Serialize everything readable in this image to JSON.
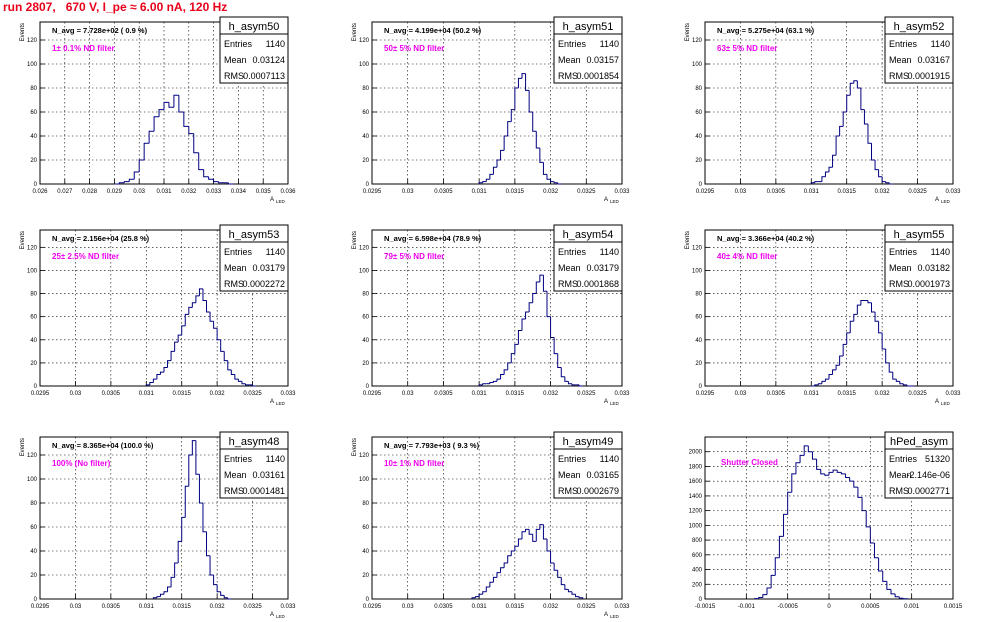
{
  "page": {
    "title": "run 2807,   670 V, I_pe ≈ 6.00 nA, 120 Hz"
  },
  "style": {
    "title_color": "#e8001a",
    "histogram_color": "#000080",
    "annotation_color": "#ee00ee",
    "grid_color": "#000000",
    "frame_color": "#000000",
    "background": "#ffffff"
  },
  "chart_data": [
    {
      "type": "bar",
      "histogram": "h_asym50",
      "stats": {
        "entries": "1140",
        "mean": "0.03124",
        "rms": "0.0007113"
      },
      "navg_text": "N_avg = 7.728e+02 ( 0.9 %)",
      "annotation": "1± 0.1% ND filter",
      "xlabel": "A",
      "xlabel_sub": "LED",
      "ylabel": "Events",
      "xlim": [
        0.026,
        0.036
      ],
      "ylim": [
        0,
        135
      ],
      "xticks": [
        "0.026",
        "0.027",
        "0.028",
        "0.029",
        "0.03",
        "0.031",
        "0.032",
        "0.033",
        "0.034",
        "0.035",
        "0.036"
      ],
      "yticks": [
        0,
        20,
        40,
        60,
        80,
        100,
        120
      ],
      "grid": true,
      "x": [
        0.029,
        0.0292,
        0.0294,
        0.0296,
        0.0298,
        0.03,
        0.0302,
        0.0304,
        0.0306,
        0.0308,
        0.031,
        0.0312,
        0.0314,
        0.0316,
        0.0318,
        0.032,
        0.0322,
        0.0324,
        0.0326,
        0.0328,
        0.033,
        0.0332,
        0.0334,
        0.0336
      ],
      "values": [
        0,
        1,
        2,
        4,
        10,
        20,
        34,
        44,
        56,
        62,
        68,
        64,
        74,
        60,
        48,
        42,
        26,
        12,
        6,
        4,
        2,
        1,
        1,
        0
      ]
    },
    {
      "type": "bar",
      "histogram": "h_asym51",
      "stats": {
        "entries": "1140",
        "mean": "0.03157",
        "rms": "0.0001854"
      },
      "navg_text": "N_avg = 4.199e+04 (50.2 %)",
      "annotation": "50± 5% ND filter",
      "xlabel": "A",
      "xlabel_sub": "LED",
      "ylabel": "Events",
      "xlim": [
        0.0295,
        0.033
      ],
      "ylim": [
        0,
        135
      ],
      "xticks": [
        "0.0295",
        "0.03",
        "0.0305",
        "0.031",
        "0.0315",
        "0.032",
        "0.0325",
        "0.033"
      ],
      "yticks": [
        0,
        20,
        40,
        60,
        80,
        100,
        120
      ],
      "grid": true,
      "x": [
        0.031,
        0.03105,
        0.0311,
        0.03115,
        0.0312,
        0.03125,
        0.0313,
        0.03135,
        0.0314,
        0.03145,
        0.0315,
        0.03155,
        0.0316,
        0.03165,
        0.0317,
        0.03175,
        0.0318,
        0.03185,
        0.0319,
        0.03195,
        0.032,
        0.03205,
        0.0321
      ],
      "values": [
        1,
        2,
        4,
        8,
        14,
        20,
        28,
        40,
        52,
        62,
        80,
        88,
        92,
        78,
        60,
        44,
        30,
        18,
        8,
        4,
        2,
        1,
        0
      ]
    },
    {
      "type": "bar",
      "histogram": "h_asym52",
      "stats": {
        "entries": "1140",
        "mean": "0.03167",
        "rms": "0.0001915"
      },
      "navg_text": "N_avg = 5.275e+04 (63.1 %)",
      "annotation": "63± 5% ND filter",
      "xlabel": "A",
      "xlabel_sub": "LED",
      "ylabel": "Events",
      "xlim": [
        0.0295,
        0.033
      ],
      "ylim": [
        0,
        135
      ],
      "xticks": [
        "0.0295",
        "0.03",
        "0.0305",
        "0.031",
        "0.0315",
        "0.032",
        "0.0325",
        "0.033"
      ],
      "yticks": [
        0,
        20,
        40,
        60,
        80,
        100,
        120
      ],
      "grid": true,
      "x": [
        0.031,
        0.03105,
        0.0311,
        0.03115,
        0.0312,
        0.03125,
        0.0313,
        0.03135,
        0.0314,
        0.03145,
        0.0315,
        0.03155,
        0.0316,
        0.03165,
        0.0317,
        0.03175,
        0.0318,
        0.03185,
        0.0319,
        0.03195,
        0.032,
        0.03205,
        0.0321
      ],
      "values": [
        1,
        2,
        2,
        6,
        10,
        14,
        24,
        40,
        48,
        60,
        74,
        84,
        86,
        80,
        62,
        50,
        34,
        20,
        12,
        6,
        2,
        1,
        0
      ]
    },
    {
      "type": "bar",
      "histogram": "h_asym53",
      "stats": {
        "entries": "1140",
        "mean": "0.03179",
        "rms": "0.0002272"
      },
      "navg_text": "N_avg = 2.156e+04 (25.8 %)",
      "annotation": "25± 2.5% ND filter",
      "xlabel": "A",
      "xlabel_sub": "LED",
      "ylabel": "Events",
      "xlim": [
        0.0295,
        0.033
      ],
      "ylim": [
        0,
        135
      ],
      "xticks": [
        "0.0295",
        "0.03",
        "0.0305",
        "0.031",
        "0.0315",
        "0.032",
        "0.0325",
        "0.033"
      ],
      "yticks": [
        0,
        20,
        40,
        60,
        80,
        100,
        120
      ],
      "grid": true,
      "x": [
        0.031,
        0.03105,
        0.0311,
        0.03115,
        0.0312,
        0.03125,
        0.0313,
        0.03135,
        0.0314,
        0.03145,
        0.0315,
        0.03155,
        0.0316,
        0.03165,
        0.0317,
        0.03175,
        0.0318,
        0.03185,
        0.0319,
        0.03195,
        0.032,
        0.03205,
        0.0321,
        0.03215,
        0.0322,
        0.03225,
        0.0323,
        0.03235,
        0.0324,
        0.03245,
        0.0325
      ],
      "values": [
        1,
        3,
        6,
        10,
        12,
        16,
        22,
        30,
        38,
        44,
        52,
        62,
        68,
        72,
        78,
        84,
        74,
        64,
        56,
        50,
        40,
        30,
        22,
        14,
        10,
        6,
        4,
        2,
        1,
        1,
        0
      ]
    },
    {
      "type": "bar",
      "histogram": "h_asym54",
      "stats": {
        "entries": "1140",
        "mean": "0.03179",
        "rms": "0.0001868"
      },
      "navg_text": "N_avg = 6.598e+04 (78.9 %)",
      "annotation": "79± 5% ND filter",
      "xlabel": "A",
      "xlabel_sub": "LED",
      "ylabel": "Events",
      "xlim": [
        0.0295,
        0.033
      ],
      "ylim": [
        0,
        135
      ],
      "xticks": [
        "0.0295",
        "0.03",
        "0.0305",
        "0.031",
        "0.0315",
        "0.032",
        "0.0325",
        "0.033"
      ],
      "yticks": [
        0,
        20,
        40,
        60,
        80,
        100,
        120
      ],
      "grid": true,
      "x": [
        0.031,
        0.03105,
        0.0311,
        0.03115,
        0.0312,
        0.03125,
        0.0313,
        0.03135,
        0.0314,
        0.03145,
        0.0315,
        0.03155,
        0.0316,
        0.03165,
        0.0317,
        0.03175,
        0.0318,
        0.03185,
        0.0319,
        0.03195,
        0.032,
        0.03205,
        0.0321,
        0.03215,
        0.0322,
        0.03225,
        0.0323,
        0.03235,
        0.0324
      ],
      "values": [
        1,
        2,
        2,
        3,
        4,
        6,
        10,
        14,
        20,
        28,
        36,
        48,
        58,
        64,
        72,
        80,
        90,
        96,
        82,
        60,
        42,
        28,
        16,
        8,
        4,
        2,
        1,
        1,
        0
      ]
    },
    {
      "type": "bar",
      "histogram": "h_asym55",
      "stats": {
        "entries": "1140",
        "mean": "0.03182",
        "rms": "0.0001973"
      },
      "navg_text": "N_avg = 3.366e+04 (40.2 %)",
      "annotation": "40± 4% ND filter",
      "xlabel": "A",
      "xlabel_sub": "LED",
      "ylabel": "Events",
      "xlim": [
        0.0295,
        0.033
      ],
      "ylim": [
        0,
        135
      ],
      "xticks": [
        "0.0295",
        "0.03",
        "0.0305",
        "0.031",
        "0.0315",
        "0.032",
        "0.0325",
        "0.033"
      ],
      "yticks": [
        0,
        20,
        40,
        60,
        80,
        100,
        120
      ],
      "grid": true,
      "x": [
        0.031,
        0.03105,
        0.0311,
        0.03115,
        0.0312,
        0.03125,
        0.0313,
        0.03135,
        0.0314,
        0.03145,
        0.0315,
        0.03155,
        0.0316,
        0.03165,
        0.0317,
        0.03175,
        0.0318,
        0.03185,
        0.0319,
        0.03195,
        0.032,
        0.03205,
        0.0321,
        0.03215,
        0.0322,
        0.03225,
        0.0323,
        0.03235,
        0.0324
      ],
      "values": [
        0,
        1,
        2,
        4,
        6,
        10,
        14,
        18,
        26,
        36,
        46,
        56,
        62,
        70,
        74,
        74,
        72,
        64,
        56,
        46,
        32,
        20,
        12,
        6,
        4,
        2,
        1,
        0,
        0
      ]
    },
    {
      "type": "bar",
      "histogram": "h_asym48",
      "stats": {
        "entries": "1140",
        "mean": "0.03161",
        "rms": "0.0001481"
      },
      "navg_text": "N_avg = 8.365e+04 (100.0 %)",
      "annotation": "100% (No filter)",
      "xlabel": "A",
      "xlabel_sub": "LED",
      "ylabel": "Events",
      "xlim": [
        0.0295,
        0.033
      ],
      "ylim": [
        0,
        135
      ],
      "xticks": [
        "0.0295",
        "0.03",
        "0.0305",
        "0.031",
        "0.0315",
        "0.032",
        "0.0325",
        "0.033"
      ],
      "yticks": [
        0,
        20,
        40,
        60,
        80,
        100,
        120
      ],
      "grid": true,
      "x": [
        0.0311,
        0.03115,
        0.0312,
        0.03125,
        0.0313,
        0.03135,
        0.0314,
        0.03145,
        0.0315,
        0.03155,
        0.0316,
        0.03165,
        0.0317,
        0.03175,
        0.0318,
        0.03185,
        0.0319,
        0.03195,
        0.032,
        0.03205,
        0.0321,
        0.03215
      ],
      "values": [
        1,
        2,
        4,
        6,
        10,
        18,
        30,
        48,
        68,
        94,
        120,
        132,
        104,
        80,
        56,
        36,
        20,
        12,
        6,
        3,
        1,
        0
      ]
    },
    {
      "type": "bar",
      "histogram": "h_asym49",
      "stats": {
        "entries": "1140",
        "mean": "0.03165",
        "rms": "0.0002679"
      },
      "navg_text": "N_avg = 7.793e+03 ( 9.3 %)",
      "annotation": "10± 1% ND filter",
      "xlabel": "A",
      "xlabel_sub": "LED",
      "ylabel": "Events",
      "xlim": [
        0.0295,
        0.033
      ],
      "ylim": [
        0,
        135
      ],
      "xticks": [
        "0.0295",
        "0.03",
        "0.0305",
        "0.031",
        "0.0315",
        "0.032",
        "0.0325",
        "0.033"
      ],
      "yticks": [
        0,
        20,
        40,
        60,
        80,
        100,
        120
      ],
      "grid": true,
      "x": [
        0.0309,
        0.03095,
        0.031,
        0.03105,
        0.0311,
        0.03115,
        0.0312,
        0.03125,
        0.0313,
        0.03135,
        0.0314,
        0.03145,
        0.0315,
        0.03155,
        0.0316,
        0.03165,
        0.0317,
        0.03175,
        0.0318,
        0.03185,
        0.0319,
        0.03195,
        0.032,
        0.03205,
        0.0321,
        0.03215,
        0.0322,
        0.03225,
        0.0323,
        0.03235,
        0.0324
      ],
      "values": [
        1,
        2,
        4,
        6,
        10,
        14,
        18,
        22,
        26,
        30,
        36,
        40,
        44,
        50,
        56,
        58,
        54,
        48,
        58,
        62,
        50,
        40,
        30,
        24,
        18,
        12,
        8,
        6,
        4,
        2,
        1
      ]
    },
    {
      "type": "bar",
      "histogram": "hPed_asym",
      "stats": {
        "entries": "51320",
        "mean": "-2.146e-06",
        "rms": "0.0002771"
      },
      "navg_text": "",
      "annotation": "Shutter Closed",
      "xlabel": "",
      "xlabel_sub": "",
      "ylabel": "",
      "xlim": [
        -0.0015,
        0.0015
      ],
      "ylim": [
        0,
        2200
      ],
      "xticks": [
        "-0.0015",
        "-0.001",
        "-0.0005",
        "0",
        "0.0005",
        "0.001",
        "0.0015"
      ],
      "yticks": [
        0,
        200,
        400,
        600,
        800,
        1000,
        1200,
        1400,
        1600,
        1800,
        2000
      ],
      "grid": true,
      "x": [
        -0.0009,
        -0.00085,
        -0.0008,
        -0.00075,
        -0.0007,
        -0.00065,
        -0.0006,
        -0.00055,
        -0.0005,
        -0.00045,
        -0.0004,
        -0.00035,
        -0.0003,
        -0.00025,
        -0.0002,
        -0.00015,
        -0.0001,
        -5e-05,
        0,
        5e-05,
        0.0001,
        0.00015,
        0.0002,
        0.00025,
        0.0003,
        0.00035,
        0.0004,
        0.00045,
        0.0005,
        0.00055,
        0.0006,
        0.00065,
        0.0007,
        0.00075,
        0.0008,
        0.00085,
        0.0009
      ],
      "values": [
        5,
        20,
        60,
        150,
        320,
        560,
        850,
        1150,
        1450,
        1700,
        1850,
        1950,
        2080,
        2000,
        1900,
        1760,
        1700,
        1680,
        1720,
        1750,
        1720,
        1700,
        1650,
        1600,
        1520,
        1380,
        1200,
        980,
        760,
        560,
        380,
        240,
        130,
        70,
        30,
        10,
        3
      ]
    }
  ]
}
